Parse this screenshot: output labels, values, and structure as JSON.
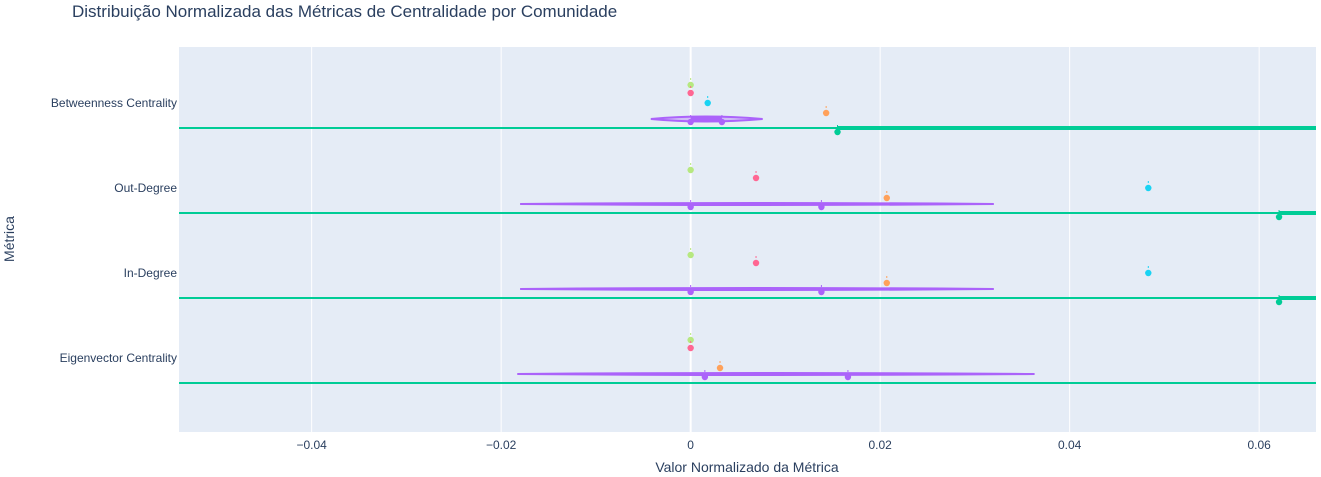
{
  "title": "Distribuição Normalizada das Métricas de Centralidade por Comunidade",
  "colors": {
    "plot_bg": "#E5ECF6",
    "grid": "#ffffff",
    "text": "#2a3f5f",
    "violet": "#AB63FA",
    "green": "#00CC96",
    "pink": "#EF553B",
    "pinkish": "#FF6692",
    "orange": "#FFA15A",
    "cyan": "#19D3F3",
    "lime": "#B6E880",
    "purple": "#636EFA"
  },
  "chart_data": {
    "type": "scatter",
    "title": "Distribuição Normalizada das Métricas de Centralidade por Comunidade",
    "xlabel": "Valor Normalizado da Métrica",
    "ylabel": "Métrica",
    "xlim": [
      -0.054,
      0.066
    ],
    "x_ticks": [
      -0.04,
      -0.02,
      0,
      0.02,
      0.04,
      0.06
    ],
    "x_tick_labels": [
      "−0.04",
      "−0.02",
      "0",
      "0.02",
      "0.04",
      "0.06"
    ],
    "categories": [
      "Betweenness Centrality",
      "Out-Degree",
      "In-Degree",
      "Eigenvector Centrality"
    ],
    "grid": true,
    "legend": "none",
    "violins": [
      {
        "category": "Betweenness Centrality",
        "color": "#AB63FA",
        "x_min": -0.0042,
        "x_max": 0.0076,
        "peak": 0.0015
      },
      {
        "category": "Out-Degree",
        "color": "#AB63FA",
        "x_min": -0.018,
        "x_max": 0.032,
        "peak": 0.007
      },
      {
        "category": "In-Degree",
        "color": "#AB63FA",
        "x_min": -0.018,
        "x_max": 0.032,
        "peak": 0.007
      },
      {
        "category": "Eigenvector Centrality",
        "color": "#AB63FA",
        "x_min": -0.0183,
        "x_max": 0.0363,
        "peak": 0.009
      }
    ],
    "green_violins": [
      {
        "category": "Betweenness Centrality",
        "x_min": 0.0155,
        "x_max": 0.066
      },
      {
        "category": "Out-Degree",
        "x_min": 0.0621,
        "x_max": 0.066
      },
      {
        "category": "In-Degree",
        "x_min": 0.0621,
        "x_max": 0.066
      }
    ],
    "points": [
      {
        "category": "Betweenness Centrality",
        "color": "#B6E880",
        "x": 0.0,
        "offset": -0.38
      },
      {
        "category": "Betweenness Centrality",
        "color": "#FF6692",
        "x": 0.0,
        "offset": -0.26
      },
      {
        "category": "Betweenness Centrality",
        "color": "#19D3F3",
        "x": 0.0018,
        "offset": -0.14
      },
      {
        "category": "Betweenness Centrality",
        "color": "#FFA15A",
        "x": 0.0143,
        "offset": 0.0
      },
      {
        "category": "Betweenness Centrality",
        "color": "#AB63FA",
        "x": 0.0,
        "offset": 0.12
      },
      {
        "category": "Betweenness Centrality",
        "color": "#AB63FA",
        "x": 0.0033,
        "offset": 0.12
      },
      {
        "category": "Betweenness Centrality",
        "color": "#00CC96",
        "x": 0.0155,
        "offset": 0.24
      },
      {
        "category": "Out-Degree",
        "color": "#B6E880",
        "x": 0.0,
        "offset": -0.38
      },
      {
        "category": "Out-Degree",
        "color": "#FF6692",
        "x": 0.0069,
        "offset": -0.26
      },
      {
        "category": "Out-Degree",
        "color": "#19D3F3",
        "x": 0.0483,
        "offset": -0.14
      },
      {
        "category": "Out-Degree",
        "color": "#FFA15A",
        "x": 0.0207,
        "offset": 0.0
      },
      {
        "category": "Out-Degree",
        "color": "#AB63FA",
        "x": 0.0,
        "offset": 0.12
      },
      {
        "category": "Out-Degree",
        "color": "#AB63FA",
        "x": 0.0138,
        "offset": 0.12
      },
      {
        "category": "Out-Degree",
        "color": "#00CC96",
        "x": 0.0621,
        "offset": 0.24
      },
      {
        "category": "In-Degree",
        "color": "#B6E880",
        "x": 0.0,
        "offset": -0.38
      },
      {
        "category": "In-Degree",
        "color": "#FF6692",
        "x": 0.0069,
        "offset": -0.26
      },
      {
        "category": "In-Degree",
        "color": "#19D3F3",
        "x": 0.0483,
        "offset": -0.14
      },
      {
        "category": "In-Degree",
        "color": "#FFA15A",
        "x": 0.0207,
        "offset": 0.0
      },
      {
        "category": "In-Degree",
        "color": "#AB63FA",
        "x": 0.0,
        "offset": 0.12
      },
      {
        "category": "In-Degree",
        "color": "#AB63FA",
        "x": 0.0138,
        "offset": 0.12
      },
      {
        "category": "In-Degree",
        "color": "#00CC96",
        "x": 0.0621,
        "offset": 0.24
      },
      {
        "category": "Eigenvector Centrality",
        "color": "#B6E880",
        "x": 0.0,
        "offset": -0.38
      },
      {
        "category": "Eigenvector Centrality",
        "color": "#FF6692",
        "x": 0.0,
        "offset": -0.26
      },
      {
        "category": "Eigenvector Centrality",
        "color": "#FFA15A",
        "x": 0.0031,
        "offset": 0.0
      },
      {
        "category": "Eigenvector Centrality",
        "color": "#AB63FA",
        "x": 0.0015,
        "offset": 0.12
      },
      {
        "category": "Eigenvector Centrality",
        "color": "#AB63FA",
        "x": 0.0166,
        "offset": 0.12
      }
    ]
  }
}
